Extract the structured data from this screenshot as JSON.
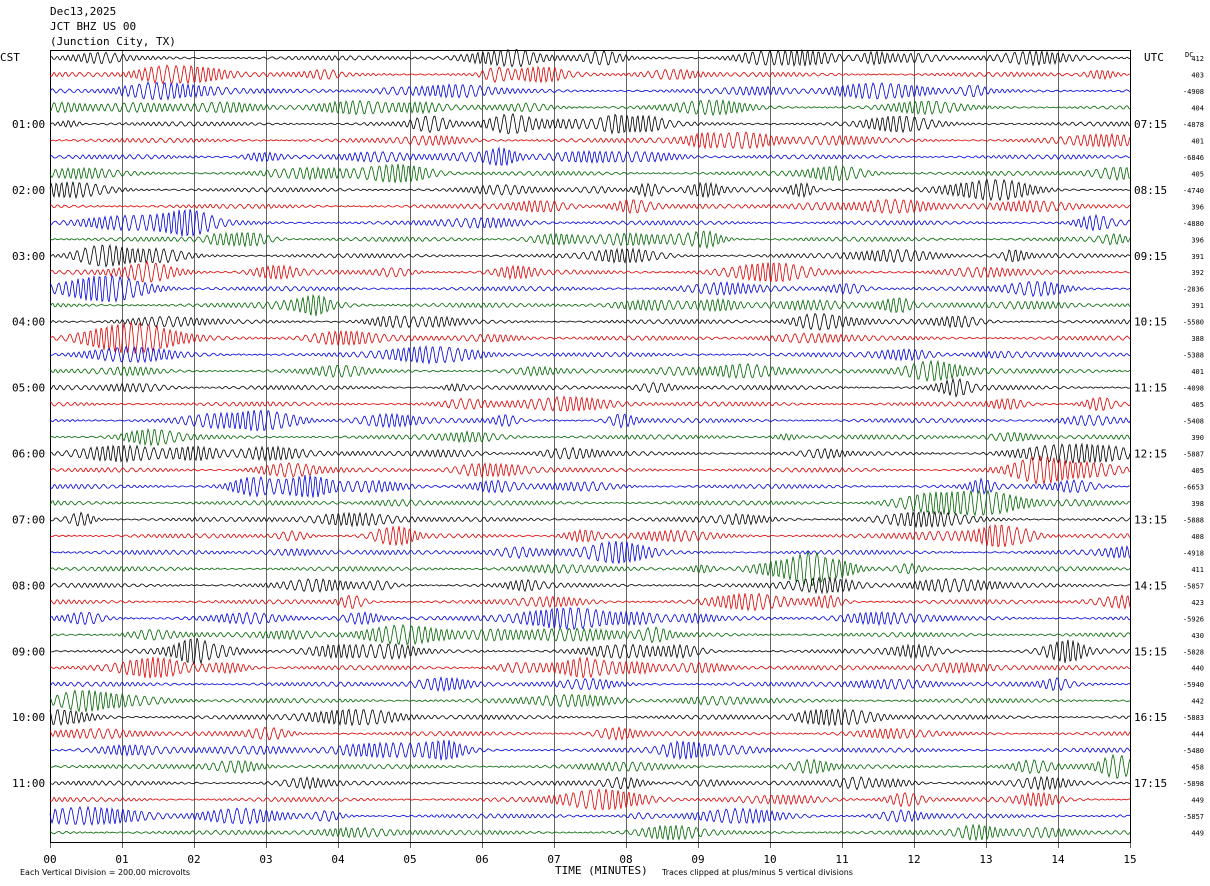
{
  "header": {
    "date": "Dec13,2025",
    "station": "JCT BHZ US 00",
    "location": "(Junction City, TX)"
  },
  "axis": {
    "left_tz": "CST",
    "right_tz": "UTC",
    "dc_label": "DC",
    "xlabel": "TIME (MINUTES)",
    "x_ticks": [
      "00",
      "01",
      "02",
      "03",
      "04",
      "05",
      "06",
      "07",
      "08",
      "09",
      "10",
      "11",
      "12",
      "13",
      "14",
      "15"
    ]
  },
  "footer": {
    "scale_note": "Each Vertical Division =  200.00 microvolts",
    "clip_note": "Traces clipped at plus/minus 5 vertical divisions"
  },
  "colors": {
    "trace_cycle": [
      "#000000",
      "#dd0000",
      "#0000dd",
      "#006600"
    ],
    "grid": "#000000"
  },
  "chart_data": {
    "type": "line",
    "description_type": "helicorder",
    "minutes_per_line": 15,
    "x_range_minutes": [
      0,
      15
    ],
    "traces_count": 48,
    "left_hour_labels": [
      {
        "trace": 4,
        "text": "01:00"
      },
      {
        "trace": 8,
        "text": "02:00"
      },
      {
        "trace": 12,
        "text": "03:00"
      },
      {
        "trace": 16,
        "text": "04:00"
      },
      {
        "trace": 20,
        "text": "05:00"
      },
      {
        "trace": 24,
        "text": "06:00"
      },
      {
        "trace": 28,
        "text": "07:00"
      },
      {
        "trace": 32,
        "text": "08:00"
      },
      {
        "trace": 36,
        "text": "09:00"
      },
      {
        "trace": 40,
        "text": "10:00"
      },
      {
        "trace": 44,
        "text": "11:00"
      }
    ],
    "right_hour_labels": [
      {
        "trace": 4,
        "text": "07:15"
      },
      {
        "trace": 8,
        "text": "08:15"
      },
      {
        "trace": 12,
        "text": "09:15"
      },
      {
        "trace": 16,
        "text": "10:15"
      },
      {
        "trace": 20,
        "text": "11:15"
      },
      {
        "trace": 24,
        "text": "12:15"
      },
      {
        "trace": 28,
        "text": "13:15"
      },
      {
        "trace": 32,
        "text": "14:15"
      },
      {
        "trace": 36,
        "text": "15:15"
      },
      {
        "trace": 40,
        "text": "16:15"
      },
      {
        "trace": 44,
        "text": "17:15"
      }
    ],
    "dc_offsets": [
      "412",
      "403",
      "-4908",
      "404",
      "-4878",
      "401",
      "-6846",
      "405",
      "-4740",
      "396",
      "-4880",
      "396",
      "391",
      "392",
      "-2836",
      "391",
      "-5580",
      "388",
      "-5388",
      "401",
      "-4098",
      "405",
      "-5408",
      "390",
      "-5887",
      "405",
      "-6653",
      "398",
      "-5888",
      "408",
      "-4918",
      "411",
      "-5857",
      "423",
      "-5926",
      "430",
      "-5828",
      "440",
      "-5940",
      "442",
      "-5883",
      "444",
      "-5480",
      "458",
      "-5898",
      "449",
      "-5857",
      "449"
    ]
  }
}
